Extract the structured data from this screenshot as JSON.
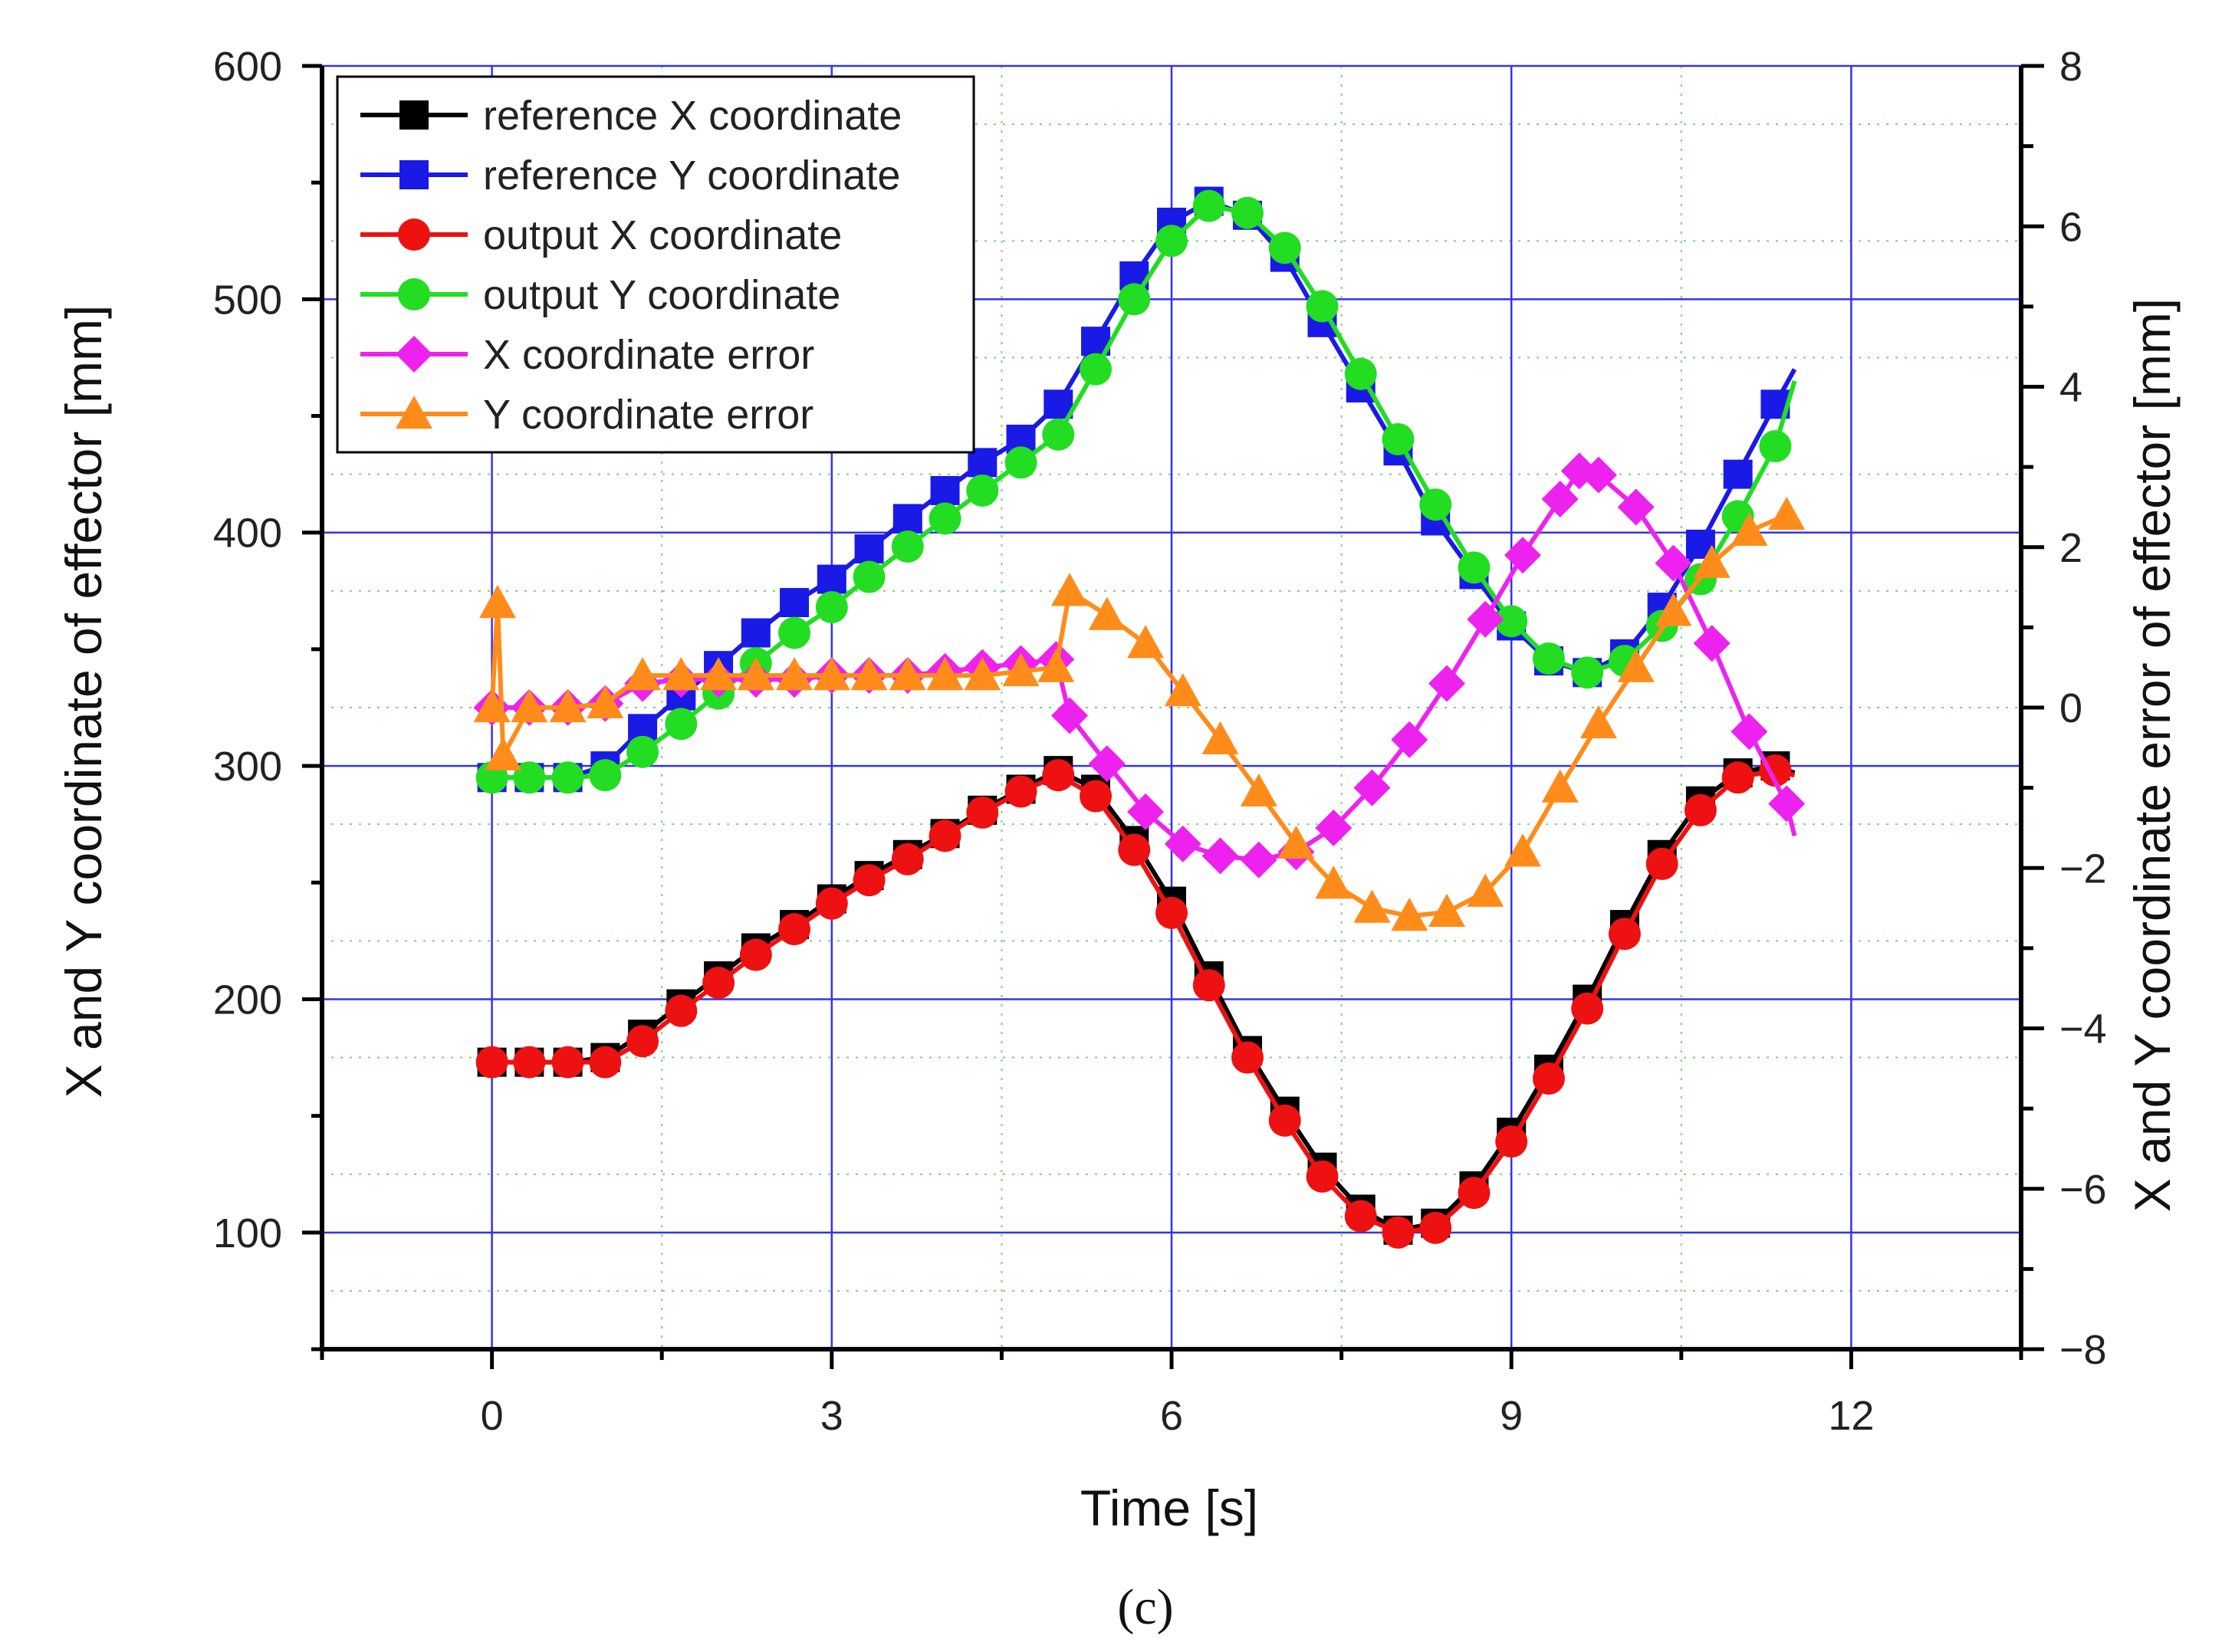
{
  "panel_label": "(c)",
  "chart_data": {
    "type": "line",
    "title": "",
    "xlabel": "Time [s]",
    "ylabel": "X and Y coordinate of effector [mm]",
    "y2label": "X and Y coordinate error of effector [mm]",
    "xlim": [
      -1.5,
      13.5
    ],
    "ylim": [
      50,
      600
    ],
    "y2lim": [
      -8,
      8
    ],
    "xticks": [
      0,
      3,
      6,
      9,
      12
    ],
    "yticks": [
      100,
      200,
      300,
      400,
      500,
      600
    ],
    "y2ticks": [
      -8,
      -6,
      -4,
      -2,
      0,
      2,
      4,
      6,
      8
    ],
    "grid": true,
    "legend_position": "top-left",
    "series": [
      {
        "name": "reference X coordinate",
        "axis": "left",
        "color": "#000000",
        "marker": "square",
        "x": [
          0,
          0.33,
          0.67,
          1.0,
          1.33,
          1.67,
          2.0,
          2.33,
          2.67,
          3.0,
          3.33,
          3.67,
          4.0,
          4.33,
          4.67,
          5.0,
          5.33,
          5.67,
          6.0,
          6.33,
          6.67,
          7.0,
          7.33,
          7.67,
          8.0,
          8.33,
          8.67,
          9.0,
          9.33,
          9.67,
          10.0,
          10.33,
          10.67,
          11.0,
          11.33,
          11.5
        ],
        "y": [
          173,
          173,
          173,
          175,
          185,
          198,
          210,
          222,
          232,
          243,
          253,
          262,
          271,
          281,
          290,
          298,
          290,
          268,
          242,
          210,
          178,
          152,
          128,
          110,
          101,
          104,
          120,
          143,
          170,
          200,
          232,
          262,
          285,
          297,
          300,
          297
        ]
      },
      {
        "name": "reference Y coordinate",
        "axis": "left",
        "color": "#1a1ae6",
        "marker": "square",
        "x": [
          0,
          0.33,
          0.67,
          1.0,
          1.33,
          1.67,
          2.0,
          2.33,
          2.67,
          3.0,
          3.33,
          3.67,
          4.0,
          4.33,
          4.67,
          5.0,
          5.33,
          5.67,
          6.0,
          6.33,
          6.67,
          7.0,
          7.33,
          7.67,
          8.0,
          8.33,
          8.67,
          9.0,
          9.33,
          9.67,
          10.0,
          10.33,
          10.67,
          11.0,
          11.33,
          11.5
        ],
        "y": [
          295,
          295,
          295,
          300,
          316,
          330,
          343,
          357,
          370,
          380,
          393,
          406,
          418,
          430,
          440,
          455,
          482,
          510,
          533,
          542,
          536,
          518,
          490,
          462,
          435,
          405,
          382,
          360,
          345,
          340,
          348,
          368,
          395,
          425,
          455,
          470
        ]
      },
      {
        "name": "output X coordinate",
        "axis": "left",
        "color": "#ee1111",
        "marker": "circle",
        "x": [
          0,
          0.33,
          0.67,
          1.0,
          1.33,
          1.67,
          2.0,
          2.33,
          2.67,
          3.0,
          3.33,
          3.67,
          4.0,
          4.33,
          4.67,
          5.0,
          5.33,
          5.67,
          6.0,
          6.33,
          6.67,
          7.0,
          7.33,
          7.67,
          8.0,
          8.33,
          8.67,
          9.0,
          9.33,
          9.67,
          10.0,
          10.33,
          10.67,
          11.0,
          11.33,
          11.5
        ],
        "y": [
          173,
          173,
          173,
          173,
          182,
          195,
          207,
          219,
          230,
          241,
          251,
          260,
          270,
          280,
          289,
          296,
          287,
          264,
          237,
          206,
          175,
          148,
          124,
          107,
          100,
          102,
          117,
          139,
          166,
          196,
          228,
          258,
          281,
          295,
          298,
          296
        ]
      },
      {
        "name": "output Y coordinate",
        "axis": "left",
        "color": "#22dd22",
        "marker": "circle",
        "x": [
          0,
          0.33,
          0.67,
          1.0,
          1.33,
          1.67,
          2.0,
          2.33,
          2.67,
          3.0,
          3.33,
          3.67,
          4.0,
          4.33,
          4.67,
          5.0,
          5.33,
          5.67,
          6.0,
          6.33,
          6.67,
          7.0,
          7.33,
          7.67,
          8.0,
          8.33,
          8.67,
          9.0,
          9.33,
          9.67,
          10.0,
          10.33,
          10.67,
          11.0,
          11.33,
          11.5
        ],
        "y": [
          295,
          295,
          295,
          296,
          306,
          318,
          331,
          344,
          357,
          368,
          381,
          394,
          406,
          418,
          430,
          442,
          470,
          500,
          525,
          540,
          537,
          522,
          497,
          468,
          440,
          412,
          385,
          362,
          346,
          340,
          345,
          360,
          380,
          407,
          437,
          465
        ]
      },
      {
        "name": "X coordinate error",
        "axis": "right",
        "color": "#ee22ee",
        "marker": "diamond",
        "x": [
          0,
          0.33,
          0.67,
          1.0,
          1.33,
          1.67,
          2.0,
          2.33,
          2.67,
          3.0,
          3.33,
          3.67,
          4.0,
          4.33,
          4.67,
          4.98,
          5.1,
          5.43,
          5.77,
          6.1,
          6.43,
          6.77,
          7.1,
          7.43,
          7.77,
          8.1,
          8.43,
          8.77,
          9.1,
          9.43,
          9.6,
          9.77,
          10.1,
          10.43,
          10.77,
          11.1,
          11.43,
          11.5
        ],
        "y": [
          0.0,
          0.0,
          0.0,
          0.05,
          0.3,
          0.35,
          0.35,
          0.35,
          0.35,
          0.4,
          0.4,
          0.4,
          0.45,
          0.5,
          0.55,
          0.6,
          -0.1,
          -0.7,
          -1.3,
          -1.7,
          -1.85,
          -1.9,
          -1.8,
          -1.5,
          -1.0,
          -0.4,
          0.3,
          1.1,
          1.9,
          2.6,
          2.95,
          2.9,
          2.5,
          1.8,
          0.8,
          -0.3,
          -1.2,
          -1.6
        ]
      },
      {
        "name": "Y coordinate error",
        "axis": "right",
        "color": "#ff8c1a",
        "marker": "triangle",
        "x": [
          0,
          0.05,
          0.1,
          0.33,
          0.67,
          1.0,
          1.33,
          1.67,
          2.0,
          2.33,
          2.67,
          3.0,
          3.33,
          3.67,
          4.0,
          4.33,
          4.67,
          4.98,
          5.1,
          5.43,
          5.77,
          6.1,
          6.43,
          6.77,
          7.1,
          7.43,
          7.77,
          8.1,
          8.43,
          8.77,
          9.1,
          9.43,
          9.77,
          10.1,
          10.43,
          10.77,
          11.1,
          11.43,
          11.5
        ],
        "y": [
          0.0,
          1.3,
          -0.6,
          0.0,
          0.0,
          0.05,
          0.4,
          0.4,
          0.4,
          0.4,
          0.4,
          0.4,
          0.4,
          0.4,
          0.4,
          0.4,
          0.45,
          0.5,
          1.45,
          1.15,
          0.8,
          0.2,
          -0.4,
          -1.05,
          -1.7,
          -2.2,
          -2.5,
          -2.6,
          -2.55,
          -2.3,
          -1.8,
          -1.0,
          -0.2,
          0.5,
          1.2,
          1.8,
          2.2,
          2.4,
          2.4
        ]
      }
    ]
  }
}
